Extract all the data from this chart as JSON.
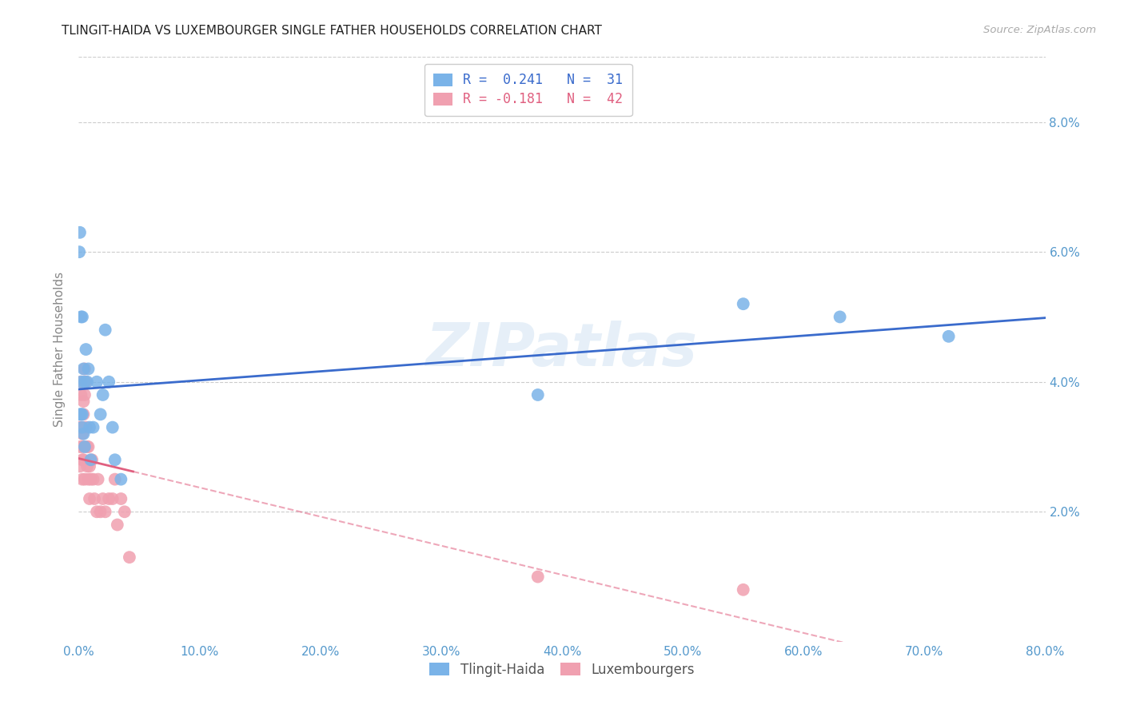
{
  "title": "TLINGIT-HAIDA VS LUXEMBOURGER SINGLE FATHER HOUSEHOLDS CORRELATION CHART",
  "source": "Source: ZipAtlas.com",
  "ylabel_label": "Single Father Households",
  "xlim": [
    0.0,
    0.8
  ],
  "ylim": [
    0.0,
    0.09
  ],
  "watermark": "ZIPatlas",
  "tlingit_x": [
    0.0005,
    0.001,
    0.001,
    0.002,
    0.002,
    0.002,
    0.003,
    0.003,
    0.003,
    0.004,
    0.004,
    0.005,
    0.005,
    0.006,
    0.007,
    0.008,
    0.009,
    0.01,
    0.012,
    0.015,
    0.018,
    0.02,
    0.022,
    0.025,
    0.028,
    0.03,
    0.035,
    0.38,
    0.55,
    0.63,
    0.72
  ],
  "tlingit_y": [
    0.06,
    0.063,
    0.035,
    0.05,
    0.04,
    0.035,
    0.05,
    0.035,
    0.033,
    0.042,
    0.032,
    0.04,
    0.03,
    0.045,
    0.04,
    0.042,
    0.033,
    0.028,
    0.033,
    0.04,
    0.035,
    0.038,
    0.048,
    0.04,
    0.033,
    0.028,
    0.025,
    0.038,
    0.052,
    0.05,
    0.047
  ],
  "luxembourg_x": [
    0.0005,
    0.001,
    0.001,
    0.002,
    0.002,
    0.002,
    0.003,
    0.003,
    0.003,
    0.003,
    0.004,
    0.004,
    0.004,
    0.005,
    0.005,
    0.005,
    0.006,
    0.006,
    0.007,
    0.007,
    0.008,
    0.008,
    0.009,
    0.009,
    0.01,
    0.011,
    0.012,
    0.013,
    0.015,
    0.016,
    0.018,
    0.02,
    0.022,
    0.025,
    0.028,
    0.03,
    0.032,
    0.035,
    0.038,
    0.042,
    0.38,
    0.55
  ],
  "luxembourg_y": [
    0.033,
    0.03,
    0.027,
    0.04,
    0.038,
    0.033,
    0.032,
    0.03,
    0.028,
    0.025,
    0.037,
    0.035,
    0.028,
    0.042,
    0.038,
    0.025,
    0.04,
    0.033,
    0.03,
    0.027,
    0.03,
    0.025,
    0.027,
    0.022,
    0.025,
    0.028,
    0.025,
    0.022,
    0.02,
    0.025,
    0.02,
    0.022,
    0.02,
    0.022,
    0.022,
    0.025,
    0.018,
    0.022,
    0.02,
    0.013,
    0.01,
    0.008
  ],
  "tlingit_color": "#7ab3e8",
  "luxembourg_color": "#f0a0b0",
  "tlingit_line_color": "#3a6bcc",
  "luxembourg_line_color": "#e06080",
  "background_color": "#ffffff",
  "grid_color": "#cccccc",
  "x_ticks": [
    0.0,
    0.1,
    0.2,
    0.3,
    0.4,
    0.5,
    0.6,
    0.7,
    0.8
  ],
  "y_ticks": [
    0.02,
    0.04,
    0.06,
    0.08
  ]
}
